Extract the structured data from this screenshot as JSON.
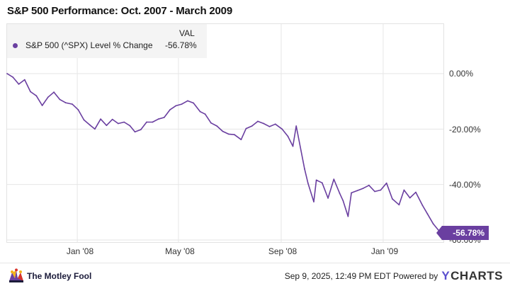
{
  "title": "S&P 500 Performance: Oct. 2007 - March 2009",
  "legend": {
    "header": "VAL",
    "series_name": "S&P 500 (^SPX) Level % Change",
    "series_value": "-56.78%",
    "color": "#6a3fa0"
  },
  "end_badge": "-56.78%",
  "footer": {
    "brand": "The Motley Fool",
    "timestamp": "Sep 9, 2025, 12:49 PM EDT Powered by",
    "provider_y": "Y",
    "provider_rest": "CHARTS"
  },
  "chart_data": {
    "type": "line",
    "title": "S&P 500 Performance: Oct. 2007 - March 2009",
    "xlabel": "",
    "ylabel": "",
    "x_ticks": [
      "Jan '08",
      "May '08",
      "Sep '08",
      "Jan '09"
    ],
    "y_ticks": [
      "0.00%",
      "-20.00%",
      "-40.00%",
      "-60.00%"
    ],
    "ylim": [
      -60,
      0
    ],
    "grid": true,
    "legend_position": "top-left",
    "series": [
      {
        "name": "S&P 500 (^SPX) Level % Change",
        "color": "#6a3fa0",
        "x": [
          "2007-10-09",
          "2007-10-16",
          "2007-10-23",
          "2007-10-30",
          "2007-11-06",
          "2007-11-13",
          "2007-11-20",
          "2007-11-27",
          "2007-12-04",
          "2007-12-11",
          "2007-12-18",
          "2007-12-26",
          "2008-01-02",
          "2008-01-09",
          "2008-01-16",
          "2008-01-22",
          "2008-01-29",
          "2008-02-05",
          "2008-02-12",
          "2008-02-19",
          "2008-02-26",
          "2008-03-04",
          "2008-03-10",
          "2008-03-17",
          "2008-03-24",
          "2008-03-31",
          "2008-04-07",
          "2008-04-14",
          "2008-04-21",
          "2008-04-28",
          "2008-05-05",
          "2008-05-12",
          "2008-05-19",
          "2008-05-27",
          "2008-06-02",
          "2008-06-09",
          "2008-06-16",
          "2008-06-23",
          "2008-06-30",
          "2008-07-07",
          "2008-07-15",
          "2008-07-21",
          "2008-07-28",
          "2008-08-04",
          "2008-08-11",
          "2008-08-18",
          "2008-08-25",
          "2008-09-02",
          "2008-09-09",
          "2008-09-15",
          "2008-09-19",
          "2008-09-29",
          "2008-10-03",
          "2008-10-10",
          "2008-10-13",
          "2008-10-20",
          "2008-10-27",
          "2008-11-03",
          "2008-11-10",
          "2008-11-14",
          "2008-11-20",
          "2008-11-24",
          "2008-12-01",
          "2008-12-08",
          "2008-12-15",
          "2008-12-22",
          "2008-12-29",
          "2009-01-05",
          "2009-01-12",
          "2009-01-20",
          "2009-01-26",
          "2009-02-02",
          "2009-02-09",
          "2009-02-17",
          "2009-02-23",
          "2009-03-02",
          "2009-03-09"
        ],
        "values": [
          0.0,
          -1.3,
          -3.8,
          -2.2,
          -6.5,
          -8.0,
          -11.5,
          -8.5,
          -6.7,
          -9.3,
          -10.5,
          -11.0,
          -13.0,
          -16.7,
          -18.5,
          -20.0,
          -16.4,
          -18.7,
          -16.5,
          -18.0,
          -17.5,
          -18.8,
          -21.0,
          -20.2,
          -17.5,
          -17.5,
          -16.4,
          -15.8,
          -13.0,
          -11.6,
          -11.0,
          -9.8,
          -10.6,
          -13.7,
          -14.6,
          -17.8,
          -18.9,
          -20.8,
          -21.8,
          -22.0,
          -23.8,
          -19.8,
          -18.9,
          -17.2,
          -18.0,
          -19.1,
          -18.2,
          -20.0,
          -22.6,
          -26.2,
          -18.9,
          -34.4,
          -39.5,
          -46.2,
          -38.4,
          -39.4,
          -44.9,
          -38.1,
          -43.2,
          -45.8,
          -51.5,
          -43.0,
          -42.2,
          -41.4,
          -40.3,
          -42.5,
          -42.0,
          -39.5,
          -45.2,
          -47.3,
          -42.0,
          -44.8,
          -42.8,
          -47.5,
          -50.6,
          -54.2,
          -56.78
        ]
      }
    ]
  }
}
